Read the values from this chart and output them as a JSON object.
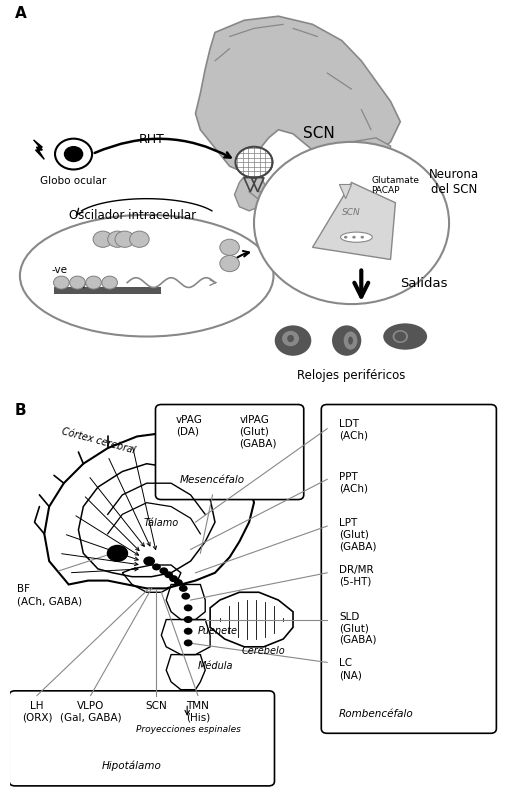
{
  "panel_a_label": "A",
  "panel_b_label": "B",
  "bg_color": "#ffffff",
  "gray_light": "#c0c0c0",
  "gray_mid": "#888888",
  "gray_dark": "#555555",
  "labels": {
    "globo_ocular": "Globo ocular",
    "rht": "RHT",
    "scn": "SCN",
    "oscilador": "Oscilador intracelular",
    "glutamate": "Glutamate",
    "pacap": "PACAP",
    "neurona_scn": "Neurona\ndel SCN",
    "salidas": "Salidas",
    "relojes": "Relojes periféricos",
    "cortex": "Córtex cerebral",
    "talamo": "Tálamo",
    "puente": "Puenete",
    "medula": "Médula",
    "cerebelo": "Cerebelo",
    "mesencefalo": "Mesencéfalo",
    "rombencefalo": "Rombencéfalo",
    "proyecciones": "Proyecciones espinales",
    "hipotalamo": "Hipotálamo",
    "bf": "BF\n(ACh, GABA)",
    "lh": "LH\n(ORX)",
    "vlpo": "VLPO\n(Gal, GABA)",
    "scn_b": "SCN",
    "tmn": "TMN\n(His)",
    "vpag": "vPAG\n(DA)",
    "vlpag": "vlPAG\n(Glut)\n(GABA)",
    "ldt": "LDT\n(ACh)",
    "ppt": "PPT\n(ACh)",
    "lpt": "LPT\n(Glut)\n(GABA)",
    "drmr": "DR/MR\n(5-HT)",
    "sld": "SLD\n(Glut)\n(GABA)",
    "lc": "LC\n(NA)"
  }
}
